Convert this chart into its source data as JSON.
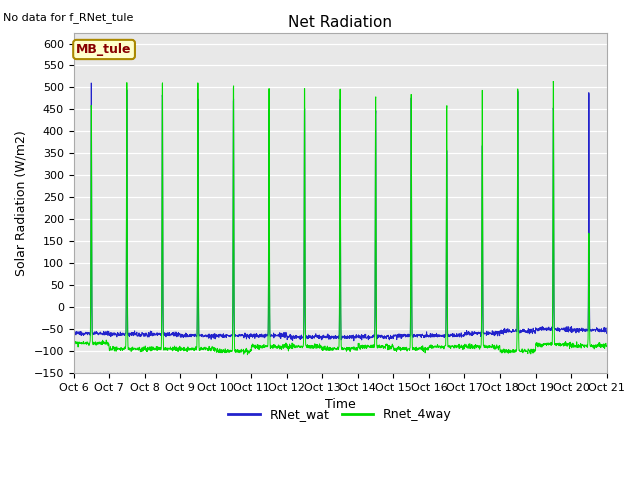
{
  "title": "Net Radiation",
  "xlabel": "Time",
  "ylabel": "Solar Radiation (W/m2)",
  "top_left_text": "No data for f_RNet_tule",
  "legend_box_text": "MB_tule",
  "legend_box_facecolor": "#ffffcc",
  "legend_box_edgecolor": "#aa8800",
  "legend_box_textcolor": "#880000",
  "ylim": [
    -150,
    625
  ],
  "yticks": [
    -150,
    -100,
    -50,
    0,
    50,
    100,
    150,
    200,
    250,
    300,
    350,
    400,
    450,
    500,
    550,
    600
  ],
  "xtick_labels": [
    "Oct 6",
    "Oct 7",
    "Oct 8",
    "Oct 9",
    "Oct 10",
    "Oct 11",
    "Oct 12",
    "Oct 13",
    "Oct 14",
    "Oct 15",
    "Oct 16",
    "Oct 17",
    "Oct 18",
    "Oct 19",
    "Oct 20",
    "Oct 21"
  ],
  "n_days": 15,
  "line1_color": "#2222cc",
  "line2_color": "#00dd00",
  "line1_label": "RNet_wat",
  "line2_label": "Rnet_4way",
  "plot_bg_color": "#e8e8e8",
  "title_fontsize": 11,
  "axis_fontsize": 9,
  "tick_fontsize": 8,
  "peaks_wat": [
    565,
    548,
    535,
    530,
    530,
    502,
    500,
    525,
    495,
    530,
    400,
    410,
    545,
    500,
    540
  ],
  "peaks_4way": [
    490,
    548,
    548,
    548,
    540,
    535,
    535,
    532,
    512,
    522,
    492,
    532,
    532,
    548,
    185
  ],
  "night_wat": [
    -60,
    -62,
    -62,
    -65,
    -65,
    -65,
    -68,
    -68,
    -68,
    -65,
    -65,
    -60,
    -55,
    -50,
    -52
  ],
  "night_4way": [
    -82,
    -95,
    -95,
    -95,
    -100,
    -90,
    -90,
    -95,
    -90,
    -95,
    -90,
    -90,
    -100,
    -85,
    -88
  ]
}
